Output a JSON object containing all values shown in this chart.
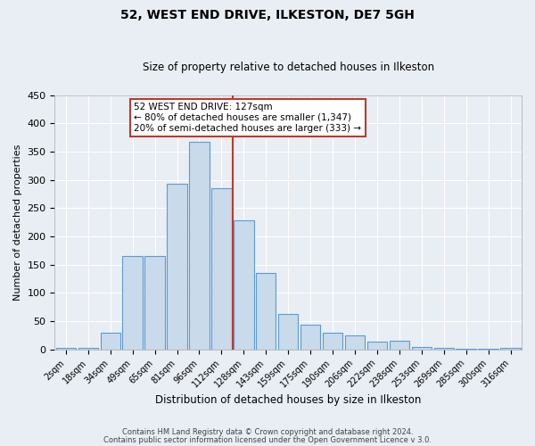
{
  "title": "52, WEST END DRIVE, ILKESTON, DE7 5GH",
  "subtitle": "Size of property relative to detached houses in Ilkeston",
  "xlabel": "Distribution of detached houses by size in Ilkeston",
  "ylabel": "Number of detached properties",
  "bar_labels": [
    "2sqm",
    "18sqm",
    "34sqm",
    "49sqm",
    "65sqm",
    "81sqm",
    "96sqm",
    "112sqm",
    "128sqm",
    "143sqm",
    "159sqm",
    "175sqm",
    "190sqm",
    "206sqm",
    "222sqm",
    "238sqm",
    "253sqm",
    "269sqm",
    "285sqm",
    "300sqm",
    "316sqm"
  ],
  "bar_values": [
    3,
    3,
    29,
    165,
    165,
    293,
    367,
    286,
    229,
    135,
    62,
    43,
    30,
    25,
    14,
    15,
    5,
    2,
    1,
    1,
    2
  ],
  "bar_color": "#c9daea",
  "bar_edge_color": "#5b9bd5",
  "vline_index": 8,
  "vline_color": "#c0392b",
  "annotation_title": "52 WEST END DRIVE: 127sqm",
  "annotation_line1": "← 80% of detached houses are smaller (1,347)",
  "annotation_line2": "20% of semi-detached houses are larger (333) →",
  "annotation_box_color": "#c0392b",
  "ylim": [
    0,
    450
  ],
  "yticks": [
    0,
    50,
    100,
    150,
    200,
    250,
    300,
    350,
    400,
    450
  ],
  "bg_color": "#e8eef4",
  "grid_color": "#ffffff",
  "footer1": "Contains HM Land Registry data © Crown copyright and database right 2024.",
  "footer2": "Contains public sector information licensed under the Open Government Licence v 3.0."
}
